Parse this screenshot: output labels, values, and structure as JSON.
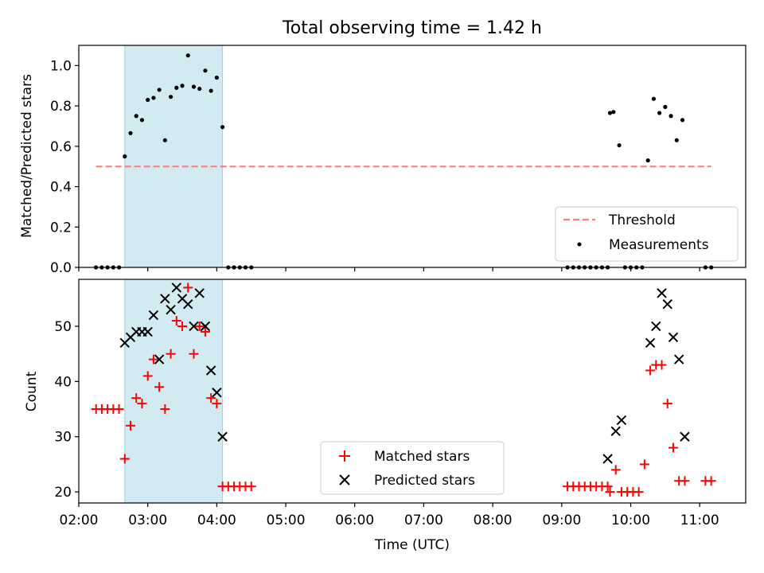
{
  "chart_data": [
    {
      "type": "scatter",
      "title": "Total observing time = 1.42 h",
      "xlabel": "",
      "ylabel": "Matched/Predicted stars",
      "xlim": [
        "02:00",
        "11:40"
      ],
      "ylim": [
        0,
        1.1
      ],
      "yticks": [
        0.0,
        0.2,
        0.4,
        0.6,
        0.8,
        1.0
      ],
      "ytick_labels": [
        "0.0",
        "0.2",
        "0.4",
        "0.6",
        "0.8",
        "1.0"
      ],
      "highlight_span": [
        "02:40",
        "04:05"
      ],
      "colors": {
        "threshold": "#ff7f7f",
        "measurements": "#000000",
        "span": "#add8e6"
      },
      "legend": {
        "position": "lower right",
        "entries": [
          "Threshold",
          "Measurements"
        ]
      },
      "threshold": {
        "name": "Threshold",
        "value": 0.5,
        "x": [
          "02:15",
          "11:10"
        ]
      },
      "measurements": {
        "name": "Measurements",
        "x": [
          "02:15",
          "02:20",
          "02:25",
          "02:30",
          "02:35",
          "02:40",
          "02:45",
          "02:50",
          "02:55",
          "03:00",
          "03:05",
          "03:10",
          "03:15",
          "03:20",
          "03:25",
          "03:30",
          "03:35",
          "03:40",
          "03:45",
          "03:50",
          "03:55",
          "04:00",
          "04:05",
          "04:10",
          "04:15",
          "04:20",
          "04:25",
          "04:30",
          "09:05",
          "09:10",
          "09:15",
          "09:20",
          "09:25",
          "09:30",
          "09:35",
          "09:40",
          "09:42",
          "09:45",
          "09:50",
          "09:55",
          "10:00",
          "10:05",
          "10:10",
          "10:15",
          "10:20",
          "10:25",
          "10:30",
          "10:35",
          "10:40",
          "10:45",
          "11:05",
          "11:10"
        ],
        "y": [
          0,
          0,
          0,
          0,
          0,
          0.55,
          0.665,
          0.75,
          0.73,
          0.83,
          0.84,
          0.88,
          0.63,
          0.845,
          0.89,
          0.9,
          1.05,
          0.895,
          0.885,
          0.975,
          0.875,
          0.94,
          0.695,
          0,
          0,
          0,
          0,
          0,
          0,
          0,
          0,
          0,
          0,
          0,
          0,
          0,
          0.765,
          0.77,
          0.605,
          0,
          0,
          0,
          0,
          0.53,
          0.835,
          0.765,
          0.795,
          0.75,
          0.63,
          0.73,
          0,
          0
        ]
      }
    },
    {
      "type": "scatter",
      "title": "",
      "xlabel": "Time (UTC)",
      "ylabel": "Count",
      "xlim": [
        "02:00",
        "11:40"
      ],
      "ylim": [
        18,
        58.5
      ],
      "yticks": [
        20,
        30,
        40,
        50
      ],
      "xticks": [
        "02:00",
        "03:00",
        "04:00",
        "05:00",
        "06:00",
        "07:00",
        "08:00",
        "09:00",
        "10:00",
        "11:00"
      ],
      "highlight_span": [
        "02:40",
        "04:05"
      ],
      "colors": {
        "matched": "#ff0000",
        "predicted": "#000000",
        "span": "#add8e6"
      },
      "legend": {
        "position": "lower center",
        "entries": [
          "Matched stars",
          "Predicted stars"
        ]
      },
      "series": [
        {
          "name": "Matched stars",
          "marker": "+",
          "x": [
            "02:15",
            "02:20",
            "02:25",
            "02:30",
            "02:35",
            "02:40",
            "02:45",
            "02:50",
            "02:55",
            "03:00",
            "03:05",
            "03:10",
            "03:15",
            "03:20",
            "03:25",
            "03:30",
            "03:35",
            "03:40",
            "03:45",
            "03:50",
            "03:55",
            "04:00",
            "04:05",
            "04:10",
            "04:15",
            "04:20",
            "04:25",
            "04:30",
            "09:05",
            "09:10",
            "09:15",
            "09:20",
            "09:25",
            "09:30",
            "09:35",
            "09:40",
            "09:42",
            "09:47",
            "09:52",
            "09:57",
            "10:02",
            "10:07",
            "10:12",
            "10:17",
            "10:22",
            "10:27",
            "10:32",
            "10:37",
            "10:42",
            "10:47",
            "11:05",
            "11:10"
          ],
          "y": [
            35,
            35,
            35,
            35,
            35,
            26,
            32,
            37,
            36,
            41,
            44,
            39,
            35,
            45,
            51,
            50,
            57,
            45,
            50,
            49,
            37,
            36,
            21,
            21,
            21,
            21,
            21,
            21,
            21,
            21,
            21,
            21,
            21,
            21,
            21,
            21,
            20,
            24,
            20,
            20,
            20,
            20,
            25,
            42,
            43,
            43,
            36,
            28,
            22,
            22,
            22,
            22
          ]
        },
        {
          "name": "Predicted stars",
          "marker": "x",
          "x": [
            "02:40",
            "02:45",
            "02:50",
            "02:55",
            "03:00",
            "03:05",
            "03:10",
            "03:15",
            "03:20",
            "03:25",
            "03:30",
            "03:35",
            "03:40",
            "03:45",
            "03:50",
            "03:55",
            "04:00",
            "04:05",
            "09:40",
            "09:47",
            "09:52",
            "10:17",
            "10:22",
            "10:27",
            "10:32",
            "10:37",
            "10:42",
            "10:47"
          ],
          "y": [
            47,
            48,
            49,
            49,
            49,
            52,
            44,
            55,
            53,
            57,
            55,
            54,
            50,
            56,
            50,
            42,
            38,
            30,
            26,
            31,
            33,
            47,
            50,
            56,
            54,
            48,
            44,
            30
          ]
        }
      ]
    }
  ]
}
